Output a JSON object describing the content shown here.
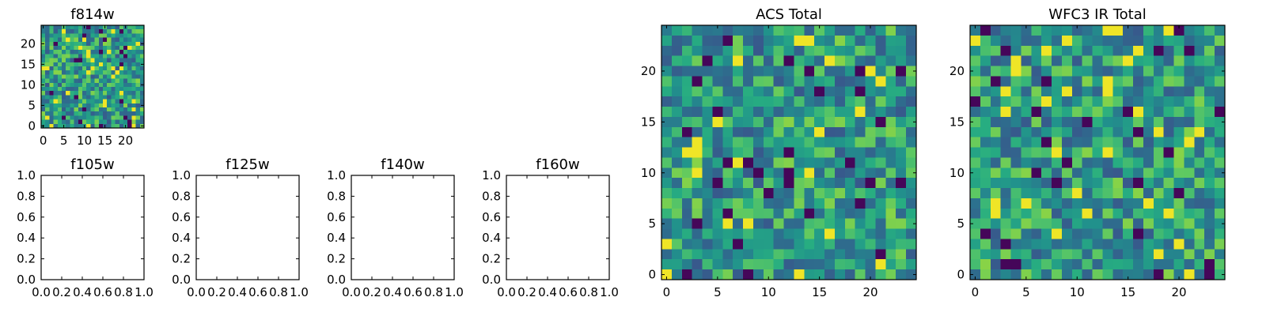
{
  "chart_data": [
    {
      "type": "heatmap",
      "panel": "f814w",
      "title": "f814w",
      "xlim": [
        -0.5,
        24.5
      ],
      "ylim": [
        -0.5,
        24.5
      ],
      "xticks": [
        0,
        5,
        10,
        15,
        20
      ],
      "yticks": [
        0,
        5,
        10,
        15,
        20
      ],
      "grid_size": [
        25,
        25
      ],
      "colormap": "viridis",
      "seed": 11
    },
    {
      "type": "scatter",
      "panel": "f105w",
      "title": "f105w",
      "xlim": [
        0,
        1
      ],
      "ylim": [
        0,
        1
      ],
      "xticks": [
        0.0,
        0.2,
        0.4,
        0.6,
        0.8,
        1.0
      ],
      "yticks": [
        0.0,
        0.2,
        0.4,
        0.6,
        0.8,
        1.0
      ],
      "series": []
    },
    {
      "type": "scatter",
      "panel": "f125w",
      "title": "f125w",
      "xlim": [
        0,
        1
      ],
      "ylim": [
        0,
        1
      ],
      "xticks": [
        0.0,
        0.2,
        0.4,
        0.6,
        0.8,
        1.0
      ],
      "yticks": [
        0.0,
        0.2,
        0.4,
        0.6,
        0.8,
        1.0
      ],
      "series": []
    },
    {
      "type": "scatter",
      "panel": "f140w",
      "title": "f140w",
      "xlim": [
        0,
        1
      ],
      "ylim": [
        0,
        1
      ],
      "xticks": [
        0.0,
        0.2,
        0.4,
        0.6,
        0.8,
        1.0
      ],
      "yticks": [
        0.0,
        0.2,
        0.4,
        0.6,
        0.8,
        1.0
      ],
      "series": []
    },
    {
      "type": "scatter",
      "panel": "f160w",
      "title": "f160w",
      "xlim": [
        0,
        1
      ],
      "ylim": [
        0,
        1
      ],
      "xticks": [
        0.0,
        0.2,
        0.4,
        0.6,
        0.8,
        1.0
      ],
      "yticks": [
        0.0,
        0.2,
        0.4,
        0.6,
        0.8,
        1.0
      ],
      "series": []
    },
    {
      "type": "heatmap",
      "panel": "acs_total",
      "title": "ACS Total",
      "xlim": [
        -0.5,
        24.5
      ],
      "ylim": [
        -0.5,
        24.5
      ],
      "xticks": [
        0,
        5,
        10,
        15,
        20
      ],
      "yticks": [
        0,
        5,
        10,
        15,
        20
      ],
      "grid_size": [
        25,
        25
      ],
      "colormap": "viridis",
      "seed": 23
    },
    {
      "type": "heatmap",
      "panel": "wfc3_ir_total",
      "title": "WFC3 IR Total",
      "xlim": [
        -0.5,
        24.5
      ],
      "ylim": [
        -0.5,
        24.5
      ],
      "xticks": [
        0,
        5,
        10,
        15,
        20
      ],
      "yticks": [
        0,
        5,
        10,
        15,
        20
      ],
      "grid_size": [
        25,
        25
      ],
      "colormap": "viridis",
      "seed": 37
    }
  ]
}
